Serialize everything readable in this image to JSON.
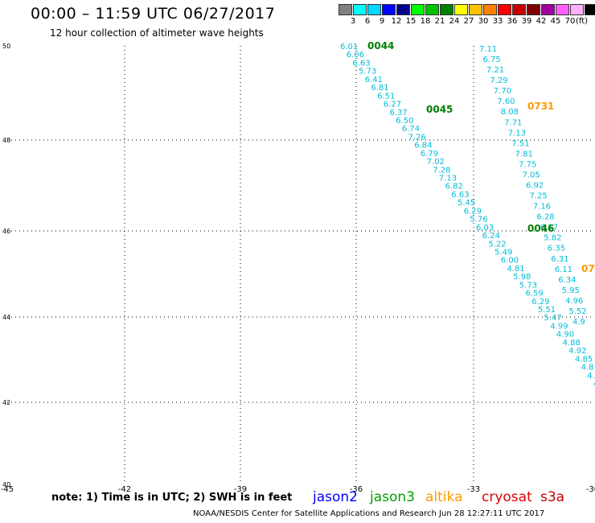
{
  "title": "00:00 – 11:59 UTC 06/27/2017",
  "subtitle": "12 hour collection of altimeter wave heights",
  "legend": {
    "unit": "(ft)",
    "colors": [
      "#808080",
      "#00ffff",
      "#00d8ff",
      "#0000ff",
      "#00008b",
      "#00ff00",
      "#00c000",
      "#008000",
      "#ffff00",
      "#ffc000",
      "#ff8000",
      "#ff0000",
      "#c80000",
      "#800000",
      "#a000a0",
      "#ff60ff",
      "#ffb0ff",
      "#000000"
    ],
    "labels": [
      "3",
      "6",
      "9",
      "12",
      "15",
      "18",
      "21",
      "24",
      "27",
      "30",
      "33",
      "36",
      "39",
      "42",
      "45",
      "70"
    ]
  },
  "axes": {
    "x_labels": [
      "-45",
      "-42",
      "-39",
      "-36",
      "-33",
      "-30"
    ],
    "y_labels": [
      "50",
      "48",
      "46",
      "44",
      "42",
      "40"
    ],
    "grid": true,
    "grid_style": "dotted"
  },
  "tracks": [
    {
      "time": "0044",
      "color": "#008000"
    },
    {
      "time": "0045",
      "color": "#008000"
    },
    {
      "time": "0046",
      "color": "#008000"
    },
    {
      "time": "0731",
      "color": "#ff9900"
    },
    {
      "time": "07",
      "color": "#ff9900"
    }
  ],
  "observations": {
    "track_a": [
      "6.01",
      "6.06",
      "6.63",
      "5.73",
      "6.41",
      "6.81",
      "6.51",
      "6.27",
      "6.37",
      "6.50",
      "6.74",
      "7.26",
      "6.84",
      "6.79",
      "7.02",
      "7.28",
      "7.13",
      "6.82",
      "6.63",
      "5.45",
      "6.29",
      "5.76",
      "6.03",
      "6.24",
      "5.22",
      "5.49",
      "6.00",
      "4.81",
      "5.98",
      "5.73",
      "6.59",
      "6.29",
      "5.51",
      "5.47",
      "4.99",
      "4.90",
      "4.88",
      "4.92",
      "4.85",
      "4.8",
      "4.5",
      "4."
    ],
    "track_b": [
      "7.11",
      "6.75",
      "7.21",
      "7.29",
      "7.70",
      "7.60",
      "8.08",
      "7.71",
      "7.13",
      "7.51",
      "7.81",
      "7.75",
      "7.05",
      "6.92",
      "7.25",
      "7.16",
      "6.28",
      "6.17",
      "5.82",
      "6.35",
      "6.31",
      "6.11",
      "6.34",
      "5.95",
      "4.96",
      "5.52",
      "4.9"
    ]
  },
  "satellites": [
    {
      "name": "jason2",
      "color": "#0000ff"
    },
    {
      "name": "jason3",
      "color": "#00a000"
    },
    {
      "name": "altika",
      "color": "#ff9900"
    },
    {
      "name": "cryosat",
      "color": "#e00000"
    },
    {
      "name": "s3a",
      "color": "#c00000"
    }
  ],
  "note": "note: 1) Time is in UTC; 2) SWH is in feet",
  "credit": "NOAA/NESDIS Center for Satellite Applications and Research    Jun 28 12:27:11 UTC 2017"
}
